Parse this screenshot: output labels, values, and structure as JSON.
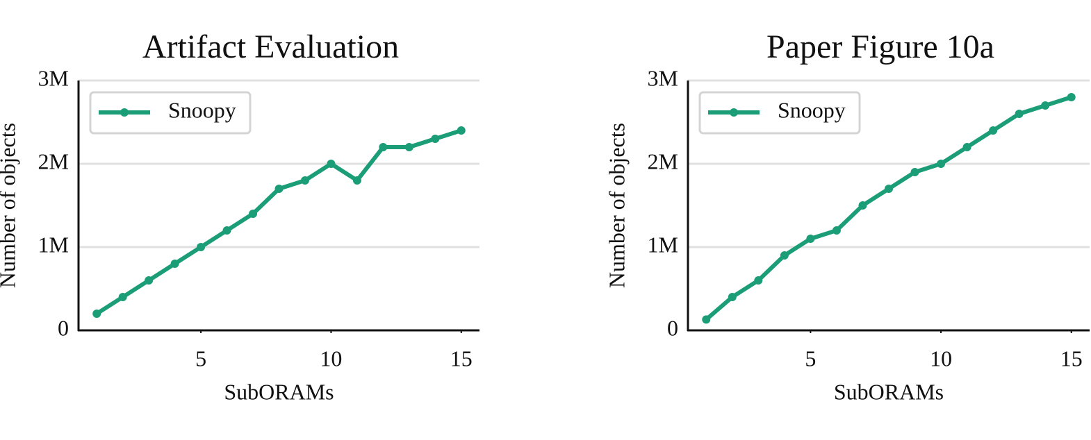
{
  "chart_data": [
    {
      "type": "line",
      "title": "Artifact Evaluation",
      "x_label": "SubORAMs",
      "y_label": "Number of objects",
      "x": [
        1,
        2,
        3,
        4,
        5,
        6,
        7,
        8,
        9,
        10,
        11,
        12,
        13,
        14,
        15
      ],
      "series": [
        {
          "name": "Snoopy",
          "color": "#1b9e77",
          "values": [
            200000,
            400000,
            600000,
            800000,
            1000000,
            1200000,
            1400000,
            1700000,
            1800000,
            2000000,
            1800000,
            2200000,
            2200000,
            2300000,
            2400000
          ]
        }
      ],
      "xlim": [
        0.3,
        15.7
      ],
      "xticks": [
        5,
        10,
        15
      ],
      "ylim": [
        0,
        3000000
      ],
      "yticks": [
        0,
        {
          "value": 1000000,
          "label": "1M"
        },
        {
          "value": 2000000,
          "label": "2M"
        },
        {
          "value": 3000000,
          "label": "3M"
        }
      ],
      "grid": true,
      "legend": "upper left"
    },
    {
      "type": "line",
      "title": "Paper Figure 10a",
      "x_label": "SubORAMs",
      "y_label": "Number of objects",
      "x": [
        1,
        2,
        3,
        4,
        5,
        6,
        7,
        8,
        9,
        10,
        11,
        12,
        13,
        14,
        15
      ],
      "series": [
        {
          "name": "Snoopy",
          "color": "#1b9e77",
          "values": [
            130000,
            400000,
            600000,
            900000,
            1100000,
            1200000,
            1500000,
            1700000,
            1900000,
            2000000,
            2200000,
            2400000,
            2600000,
            2700000,
            2800000
          ]
        }
      ],
      "xlim": [
        0.3,
        15.7
      ],
      "xticks": [
        5,
        10,
        15
      ],
      "ylim": [
        0,
        3000000
      ],
      "yticks": [
        0,
        {
          "value": 1000000,
          "label": "1M"
        },
        {
          "value": 2000000,
          "label": "2M"
        },
        {
          "value": 3000000,
          "label": "3M"
        }
      ],
      "grid": true,
      "legend": "upper left"
    }
  ]
}
